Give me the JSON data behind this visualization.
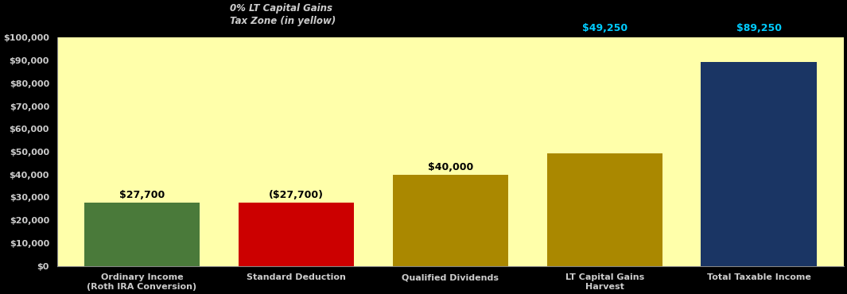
{
  "categories": [
    "Ordinary Income\n(Roth IRA Conversion)",
    "Standard Deduction",
    "Qualified Dividends",
    "LT Capital Gains\nHarvest",
    "Total Taxable Income"
  ],
  "values": [
    27700,
    27700,
    40000,
    49250,
    89250
  ],
  "bar_colors": [
    "#4a7a3a",
    "#cc0000",
    "#aa8800",
    "#aa8800",
    "#1a3564"
  ],
  "value_labels": [
    "$27,700",
    "($27,700)",
    "$40,000",
    "$49,250",
    "$89,250"
  ],
  "background_color": "#ffffaa",
  "outer_bg_color": "#000000",
  "ylim": [
    0,
    100000
  ],
  "yticks": [
    0,
    10000,
    20000,
    30000,
    40000,
    50000,
    60000,
    70000,
    80000,
    90000,
    100000
  ],
  "ytick_labels": [
    "$0",
    "$10,000",
    "$20,000",
    "$30,000",
    "$40,000",
    "$50,000",
    "$60,000",
    "$70,000",
    "$80,000",
    "$90,000",
    "$100,000"
  ],
  "annotation_text": "0% LT Capital Gains\nTax Zone (in yellow)",
  "annotation_color": "#333333",
  "label_color": "#000000",
  "value_label_fontsize": 9,
  "bar_width": 0.75,
  "fig_width": 10.65,
  "fig_height": 3.7
}
